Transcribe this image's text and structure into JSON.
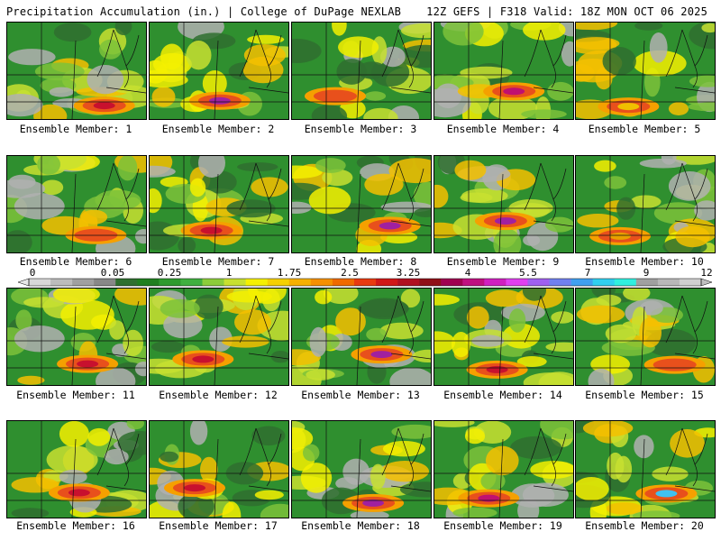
{
  "header": {
    "left": "Precipitation Accumulation (in.) | College of DuPage NEXLAB",
    "right": "12Z GEFS | F318 Valid: 18Z MON OCT 06 2025"
  },
  "member_label_prefix": "Ensemble Member:",
  "members": [
    {
      "id": "1",
      "label": "Ensemble Member: 1",
      "max_shade": "#c8102e"
    },
    {
      "id": "2",
      "label": "Ensemble Member: 2",
      "max_shade": "#a020a0"
    },
    {
      "id": "3",
      "label": "Ensemble Member: 3",
      "max_shade": "#e8501c"
    },
    {
      "id": "4",
      "label": "Ensemble Member: 4",
      "max_shade": "#c01070"
    },
    {
      "id": "5",
      "label": "Ensemble Member: 5",
      "max_shade": "#f0c000"
    },
    {
      "id": "6",
      "label": "Ensemble Member: 6",
      "max_shade": "#e8501c"
    },
    {
      "id": "7",
      "label": "Ensemble Member: 7",
      "max_shade": "#c8102e"
    },
    {
      "id": "8",
      "label": "Ensemble Member: 8",
      "max_shade": "#a020a0"
    },
    {
      "id": "9",
      "label": "Ensemble Member: 9",
      "max_shade": "#a020a0"
    },
    {
      "id": "10",
      "label": "Ensemble Member: 10",
      "max_shade": "#e8a000"
    },
    {
      "id": "11",
      "label": "Ensemble Member: 11",
      "max_shade": "#c8102e"
    },
    {
      "id": "12",
      "label": "Ensemble Member: 12",
      "max_shade": "#c8102e"
    },
    {
      "id": "13",
      "label": "Ensemble Member: 13",
      "max_shade": "#a020a0"
    },
    {
      "id": "14",
      "label": "Ensemble Member: 14",
      "max_shade": "#c8102e"
    },
    {
      "id": "15",
      "label": "Ensemble Member: 15",
      "max_shade": "#e8501c"
    },
    {
      "id": "16",
      "label": "Ensemble Member: 16",
      "max_shade": "#c8102e"
    },
    {
      "id": "17",
      "label": "Ensemble Member: 17",
      "max_shade": "#c8102e"
    },
    {
      "id": "18",
      "label": "Ensemble Member: 18",
      "max_shade": "#a020a0"
    },
    {
      "id": "19",
      "label": "Ensemble Member: 19",
      "max_shade": "#c01070"
    },
    {
      "id": "20",
      "label": "Ensemble Member: 20",
      "max_shade": "#40c0f0"
    }
  ],
  "colorbar": {
    "tick_labels": [
      "0",
      "0.05",
      "0.25",
      "1",
      "1.75",
      "2.5",
      "3.25",
      "4",
      "5.5",
      "7",
      "9",
      "12"
    ],
    "colors": [
      "#d8d8d8",
      "#bcbcbc",
      "#a0a0a0",
      "#888888",
      "#2f6f2f",
      "#1f7f1f",
      "#2e9b2e",
      "#3fb03f",
      "#8ccd3a",
      "#c8e030",
      "#f5f000",
      "#f5d000",
      "#f5b000",
      "#f59000",
      "#f06a00",
      "#e83a10",
      "#d01818",
      "#b01020",
      "#901018",
      "#a00050",
      "#c01080",
      "#d020c0",
      "#e040f0",
      "#a060f0",
      "#7080f0",
      "#40a0f0",
      "#30d0f0",
      "#30f0e0",
      "#a0a0a0",
      "#b8b8b8",
      "#d0d0d0"
    ]
  }
}
